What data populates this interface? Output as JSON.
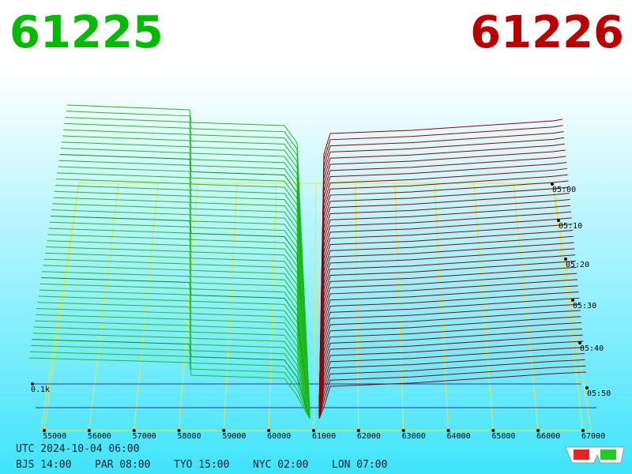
{
  "header": {
    "bid": "61225",
    "ask": "61226"
  },
  "price_axis": [
    "55000",
    "56000",
    "57000",
    "58000",
    "59000",
    "60000",
    "61000",
    "62000",
    "63000",
    "64000",
    "65000",
    "66000",
    "67000"
  ],
  "time_axis": [
    "05:00",
    "05:10",
    "05:20",
    "05:30",
    "05:40",
    "05:50"
  ],
  "depth_label": "0.1k",
  "footer": {
    "utc": "UTC 2024-10-04 06:00",
    "zones": [
      "BJS 14:00",
      "PAR 08:00",
      "TYO 15:00",
      "NYC 02:00",
      "LON 07:00"
    ]
  }
}
